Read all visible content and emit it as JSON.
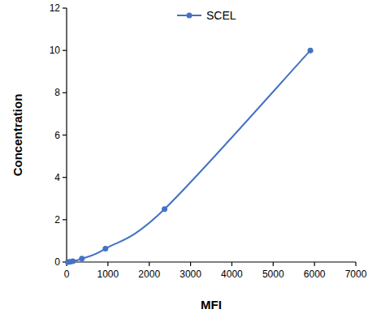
{
  "chart_data": {
    "type": "line",
    "x_label": "MFI",
    "y_label": "Concentration",
    "x": [
      30,
      80,
      150,
      370,
      940,
      2370,
      5900
    ],
    "series": [
      {
        "name": "SCEL",
        "color": "#4472c4",
        "marker": "circle",
        "line_style": "solid",
        "values": [
          0,
          0.01,
          0.04,
          0.16,
          0.63,
          2.5,
          10
        ]
      }
    ],
    "xlim": [
      0,
      7000
    ],
    "xticks": [
      0,
      1000,
      2000,
      3000,
      4000,
      5000,
      6000,
      7000
    ],
    "ylim": [
      0,
      12
    ],
    "yticks": [
      0,
      2,
      4,
      6,
      8,
      10,
      12
    ],
    "grid": false,
    "legend": "top"
  }
}
